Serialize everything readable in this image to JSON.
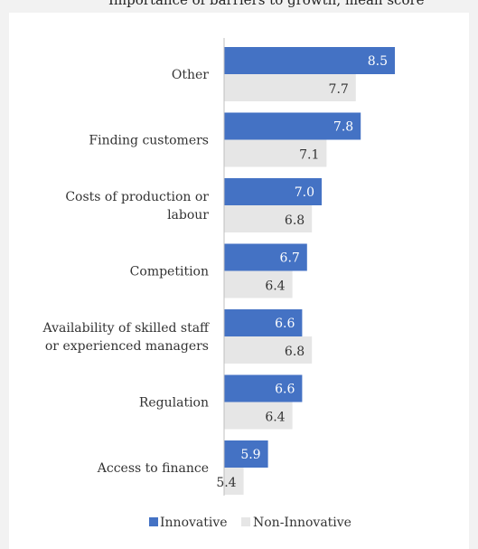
{
  "header": {
    "partial_title": "Importance of barriers to growth, mean score"
  },
  "colors": {
    "innovative": "#4472c4",
    "non_innovative": "#e6e6e6"
  },
  "chart_data": {
    "type": "bar",
    "orientation": "horizontal",
    "categories": [
      [
        "Other"
      ],
      [
        "Finding customers"
      ],
      [
        "Costs of production or",
        "labour"
      ],
      [
        "Competition"
      ],
      [
        "Availability of skilled staff",
        "or experienced managers"
      ],
      [
        "Regulation"
      ],
      [
        "Access to finance"
      ]
    ],
    "series": [
      {
        "name": "Innovative",
        "values": [
          8.5,
          7.8,
          7.0,
          6.7,
          6.6,
          6.6,
          5.9
        ],
        "labels": [
          "8.5",
          "7.8",
          "7.0",
          "6.7",
          "6.6",
          "6.6",
          "5.9"
        ]
      },
      {
        "name": "Non-Innovative",
        "values": [
          7.7,
          7.1,
          6.8,
          6.4,
          6.8,
          6.4,
          5.4
        ],
        "labels": [
          "7.7",
          "7.1",
          "6.8",
          "6.4",
          "6.8",
          "6.4",
          "5.4"
        ]
      }
    ],
    "xlim": [
      5,
      9
    ],
    "grid": false,
    "legend_position": "bottom"
  }
}
